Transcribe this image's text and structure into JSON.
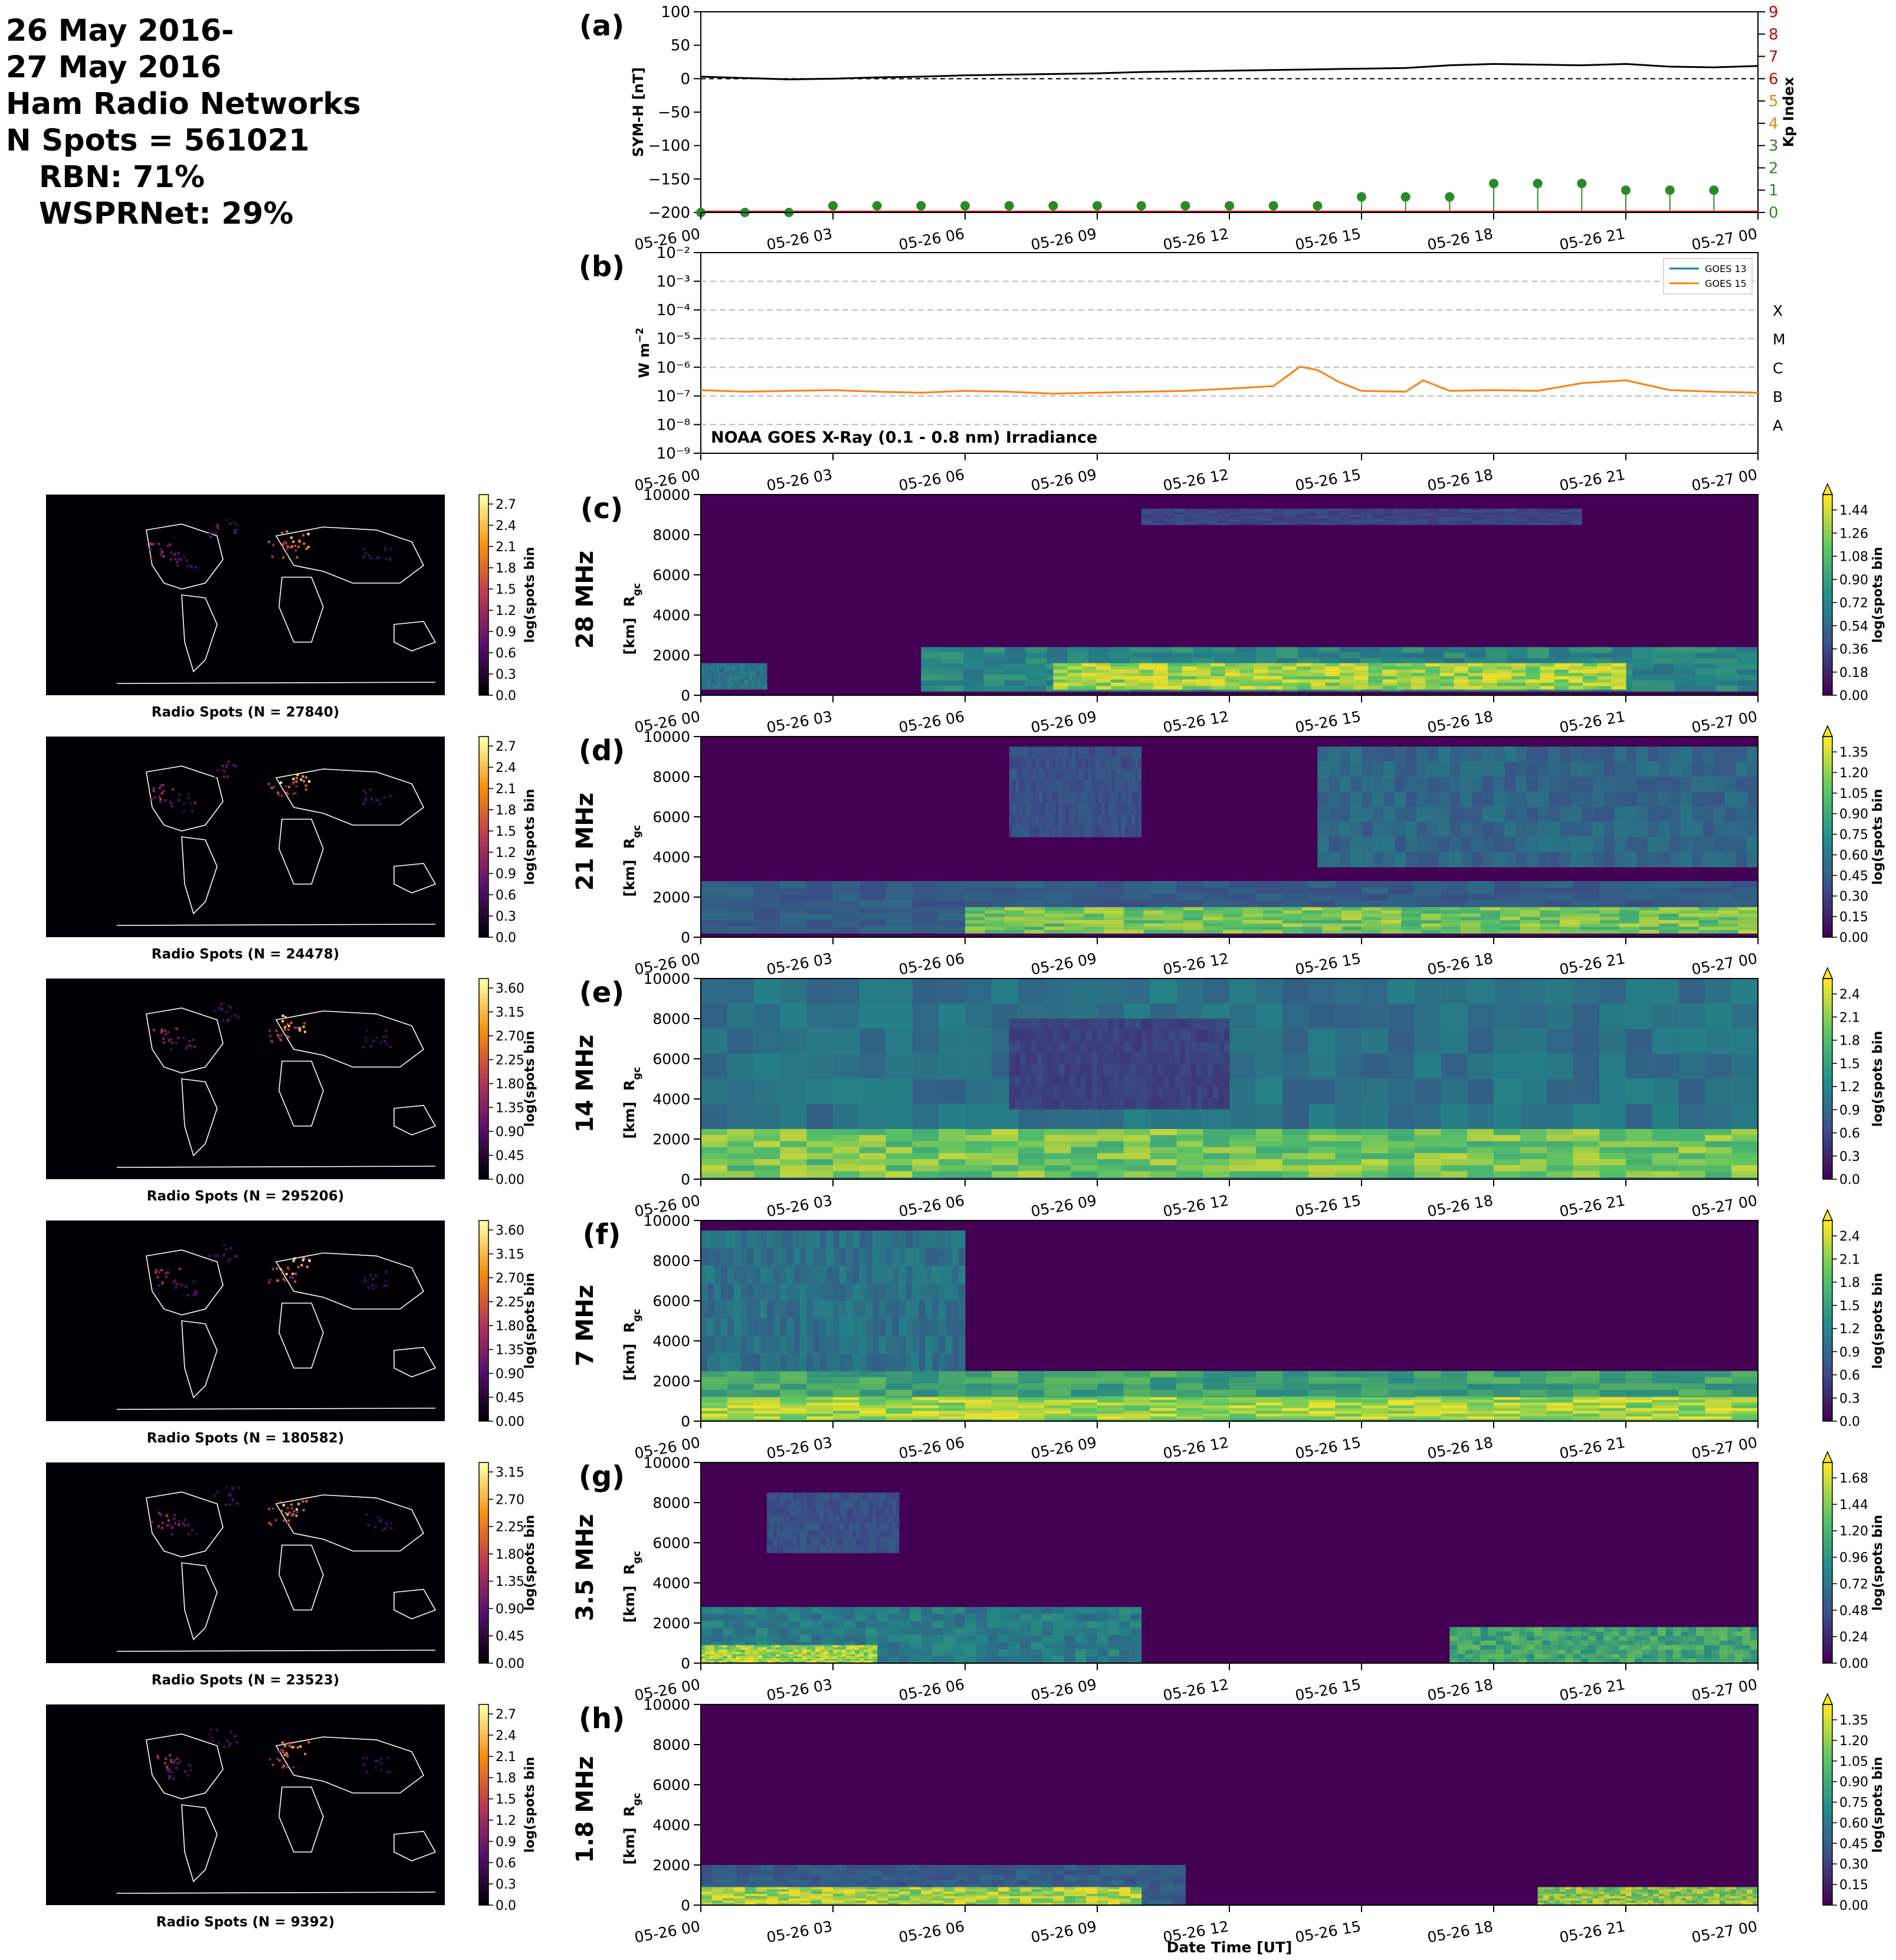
{
  "header": {
    "lines": [
      "26 May 2016-",
      "27 May 2016",
      "Ham Radio Networks",
      "N Spots = 561021"
    ],
    "sub_lines": [
      "RBN: 71%",
      "WSPRNet: 29%"
    ]
  },
  "time_ticks": [
    "05-26 00",
    "05-26 03",
    "05-26 06",
    "05-26 09",
    "05-26 12",
    "05-26 15",
    "05-26 18",
    "05-26 21",
    "05-27 00"
  ],
  "colors": {
    "symh": "#000000",
    "kp": "#2a8a2a",
    "kp_axis": "#cc0000",
    "goes13": "#1f77b4",
    "goes15": "#ff7f0e",
    "viridis_low": "#440154",
    "viridis_mid": "#21918c",
    "viridis_high": "#fde725",
    "map_bg": "#000004",
    "coast": "#ffffff"
  },
  "chart_data": [
    {
      "panel": "(a)",
      "type": "line",
      "ylabel": "SYM-H [nT]",
      "ylim": [
        -200,
        100
      ],
      "yticks": [
        "100",
        "50",
        "0",
        "−50",
        "−100",
        "−150",
        "−200"
      ],
      "y2label": "Kp Index",
      "y2lim": [
        0,
        9
      ],
      "y2ticks": [
        "0",
        "1",
        "2",
        "3",
        "4",
        "5",
        "6",
        "7",
        "8",
        "9"
      ],
      "symh_hours": [
        0,
        1,
        2,
        3,
        4,
        5,
        6,
        7,
        8,
        9,
        10,
        11,
        12,
        13,
        14,
        15,
        16,
        17,
        18,
        19,
        20,
        21,
        22,
        23,
        24
      ],
      "symh_values": [
        3,
        1,
        -1,
        0,
        2,
        3,
        5,
        6,
        7,
        8,
        10,
        11,
        12,
        13,
        14,
        15,
        16,
        20,
        22,
        21,
        20,
        22,
        18,
        17,
        19
      ],
      "kp_hours": [
        0,
        1,
        2,
        3,
        4,
        5,
        6,
        7,
        8,
        9,
        10,
        11,
        12,
        13,
        14,
        15,
        16,
        17,
        18,
        19,
        20,
        21,
        22,
        23
      ],
      "kp_values": [
        0,
        0,
        0,
        0.3,
        0.3,
        0.3,
        0.3,
        0.3,
        0.3,
        0.3,
        0.3,
        0.3,
        0.3,
        0.3,
        0.3,
        0.7,
        0.7,
        0.7,
        1.3,
        1.3,
        1.3,
        1,
        1,
        1
      ]
    },
    {
      "panel": "(b)",
      "type": "line",
      "ylabel": "W m$^{-2}$",
      "ylabel_main": "W m",
      "ylabel_sup": "−2",
      "ylog_range": [
        -9,
        -2
      ],
      "yticks": [
        "10⁻⁹",
        "10⁻⁸",
        "10⁻⁷",
        "10⁻⁶",
        "10⁻⁵",
        "10⁻⁴",
        "10⁻³",
        "10⁻²"
      ],
      "flare_classes": [
        "X",
        "M",
        "C",
        "B",
        "A"
      ],
      "annotation": "NOAA GOES X-Ray (0.1 - 0.8 nm) Irradiance",
      "series": [
        {
          "name": "GOES 13",
          "hours": [],
          "values": []
        },
        {
          "name": "GOES 15",
          "hours": [
            0,
            1,
            2,
            3,
            4,
            5,
            6,
            7,
            8,
            9,
            10,
            11,
            12,
            13,
            13.6,
            14,
            14.5,
            15,
            16,
            16.4,
            17,
            18,
            19,
            20,
            21,
            22,
            23,
            24
          ],
          "values": [
            1.6e-07,
            1.4e-07,
            1.5e-07,
            1.6e-07,
            1.4e-07,
            1.3e-07,
            1.5e-07,
            1.4e-07,
            1.2e-07,
            1.3e-07,
            1.4e-07,
            1.5e-07,
            1.8e-07,
            2.2e-07,
            1.05e-06,
            8e-07,
            3e-07,
            1.5e-07,
            1.4e-07,
            3.5e-07,
            1.5e-07,
            1.6e-07,
            1.5e-07,
            2.8e-07,
            3.5e-07,
            1.6e-07,
            1.4e-07,
            1.3e-07
          ]
        }
      ]
    },
    {
      "panel": "(c)",
      "type": "heatmap",
      "band": "28 MHz",
      "ylabel": "R$_{gc}$ [km]",
      "ylim": [
        0,
        10000
      ],
      "colorbar_label": "log(spots bin$^{-1}$)",
      "colorbar_ticks": [
        "0.00",
        "0.18",
        "0.36",
        "0.54",
        "0.72",
        "0.90",
        "1.08",
        "1.26",
        "1.44"
      ],
      "map_caption": "Radio Spots (N = 27840)",
      "map_colorbar_ticks": [
        "0.0",
        "0.3",
        "0.6",
        "0.9",
        "1.2",
        "1.5",
        "1.8",
        "2.1",
        "2.4",
        "2.7"
      ],
      "bands": [
        {
          "h0": 0,
          "h1": 1.5,
          "r0": 300,
          "r1": 1600,
          "level": 0.45
        },
        {
          "h0": 5,
          "h1": 24,
          "r0": 200,
          "r1": 2400,
          "level": 0.55
        },
        {
          "h0": 8,
          "h1": 21,
          "r0": 300,
          "r1": 1600,
          "level": 0.95
        },
        {
          "h0": 10,
          "h1": 20,
          "r0": 8500,
          "r1": 9300,
          "level": 0.25
        }
      ]
    },
    {
      "panel": "(d)",
      "type": "heatmap",
      "band": "21 MHz",
      "ylabel": "R$_{gc}$ [km]",
      "ylim": [
        0,
        10000
      ],
      "colorbar_label": "log(spots bin$^{-1}$)",
      "colorbar_ticks": [
        "0.00",
        "0.15",
        "0.30",
        "0.45",
        "0.60",
        "0.75",
        "0.90",
        "1.05",
        "1.20",
        "1.35"
      ],
      "map_caption": "Radio Spots (N = 24478)",
      "map_colorbar_ticks": [
        "0.0",
        "0.3",
        "0.6",
        "0.9",
        "1.2",
        "1.5",
        "1.8",
        "2.1",
        "2.4",
        "2.7"
      ],
      "bands": [
        {
          "h0": 0,
          "h1": 24,
          "r0": 200,
          "r1": 2800,
          "level": 0.35
        },
        {
          "h0": 6,
          "h1": 24,
          "r0": 200,
          "r1": 1500,
          "level": 0.85
        },
        {
          "h0": 14,
          "h1": 24,
          "r0": 3500,
          "r1": 9500,
          "level": 0.4
        },
        {
          "h0": 7,
          "h1": 10,
          "r0": 5000,
          "r1": 9500,
          "level": 0.3
        }
      ]
    },
    {
      "panel": "(e)",
      "type": "heatmap",
      "band": "14 MHz",
      "ylabel": "R$_{gc}$ [km]",
      "ylim": [
        0,
        10000
      ],
      "colorbar_label": "log(spots bin$^{-1}$)",
      "colorbar_ticks": [
        "0.0",
        "0.3",
        "0.6",
        "0.9",
        "1.2",
        "1.5",
        "1.8",
        "2.1",
        "2.4"
      ],
      "map_caption": "Radio Spots (N = 295206)",
      "map_colorbar_ticks": [
        "0.00",
        "0.45",
        "0.90",
        "1.35",
        "1.80",
        "2.25",
        "2.70",
        "3.15",
        "3.60"
      ],
      "bands": [
        {
          "h0": 0,
          "h1": 24,
          "r0": 0,
          "r1": 10000,
          "level": 0.45
        },
        {
          "h0": 0,
          "h1": 24,
          "r0": 100,
          "r1": 2500,
          "level": 0.85
        },
        {
          "h0": 7,
          "h1": 12,
          "r0": 3500,
          "r1": 8000,
          "level": 0.2
        }
      ]
    },
    {
      "panel": "(f)",
      "type": "heatmap",
      "band": "7 MHz",
      "ylabel": "R$_{gc}$ [km]",
      "ylim": [
        0,
        10000
      ],
      "colorbar_label": "log(spots bin$^{-1}$)",
      "colorbar_ticks": [
        "0.0",
        "0.3",
        "0.6",
        "0.9",
        "1.2",
        "1.5",
        "1.8",
        "2.1",
        "2.4"
      ],
      "map_caption": "Radio Spots (N = 180582)",
      "map_colorbar_ticks": [
        "0.00",
        "0.45",
        "0.90",
        "1.35",
        "1.80",
        "2.25",
        "2.70",
        "3.15",
        "3.60"
      ],
      "bands": [
        {
          "h0": 0,
          "h1": 24,
          "r0": 0,
          "r1": 2500,
          "level": 0.7
        },
        {
          "h0": 0,
          "h1": 6,
          "r0": 2500,
          "r1": 9500,
          "level": 0.45
        },
        {
          "h0": 0,
          "h1": 24,
          "r0": 100,
          "r1": 1200,
          "level": 0.95
        }
      ]
    },
    {
      "panel": "(g)",
      "type": "heatmap",
      "band": "3.5 MHz",
      "ylabel": "R$_{gc}$ [km]",
      "ylim": [
        0,
        10000
      ],
      "colorbar_label": "log(spots bin$^{-1}$)",
      "colorbar_ticks": [
        "0.00",
        "0.24",
        "0.48",
        "0.72",
        "0.96",
        "1.20",
        "1.44",
        "1.68"
      ],
      "map_caption": "Radio Spots (N = 23523)",
      "map_colorbar_ticks": [
        "0.00",
        "0.45",
        "0.90",
        "1.35",
        "1.80",
        "2.25",
        "2.70",
        "3.15"
      ],
      "bands": [
        {
          "h0": 0,
          "h1": 10,
          "r0": 0,
          "r1": 2800,
          "level": 0.5
        },
        {
          "h0": 0,
          "h1": 4,
          "r0": 0,
          "r1": 900,
          "level": 0.95
        },
        {
          "h0": 17,
          "h1": 24,
          "r0": 0,
          "r1": 1800,
          "level": 0.7
        },
        {
          "h0": 1.5,
          "h1": 4.5,
          "r0": 5500,
          "r1": 8500,
          "level": 0.3
        }
      ]
    },
    {
      "panel": "(h)",
      "type": "heatmap",
      "band": "1.8 MHz",
      "ylabel": "R$_{gc}$ [km]",
      "ylim": [
        0,
        10000
      ],
      "colorbar_label": "log(spots bin$^{-1}$)",
      "colorbar_ticks": [
        "0.00",
        "0.15",
        "0.30",
        "0.45",
        "0.60",
        "0.75",
        "0.90",
        "1.05",
        "1.20",
        "1.35"
      ],
      "map_caption": "Radio Spots (N = 9392)",
      "map_colorbar_ticks": [
        "0.0",
        "0.3",
        "0.6",
        "0.9",
        "1.2",
        "1.5",
        "1.8",
        "2.1",
        "2.4",
        "2.7"
      ],
      "bands": [
        {
          "h0": 0,
          "h1": 11,
          "r0": 0,
          "r1": 2000,
          "level": 0.35
        },
        {
          "h0": 0,
          "h1": 10,
          "r0": 0,
          "r1": 900,
          "level": 0.95
        },
        {
          "h0": 19,
          "h1": 24,
          "r0": 0,
          "r1": 900,
          "level": 0.9
        }
      ]
    }
  ],
  "panel_ytick_labels": [
    "0",
    "2000",
    "4000",
    "6000",
    "8000",
    "10000"
  ],
  "xlabel": "Date Time [UT]",
  "x_hours_span": 24
}
